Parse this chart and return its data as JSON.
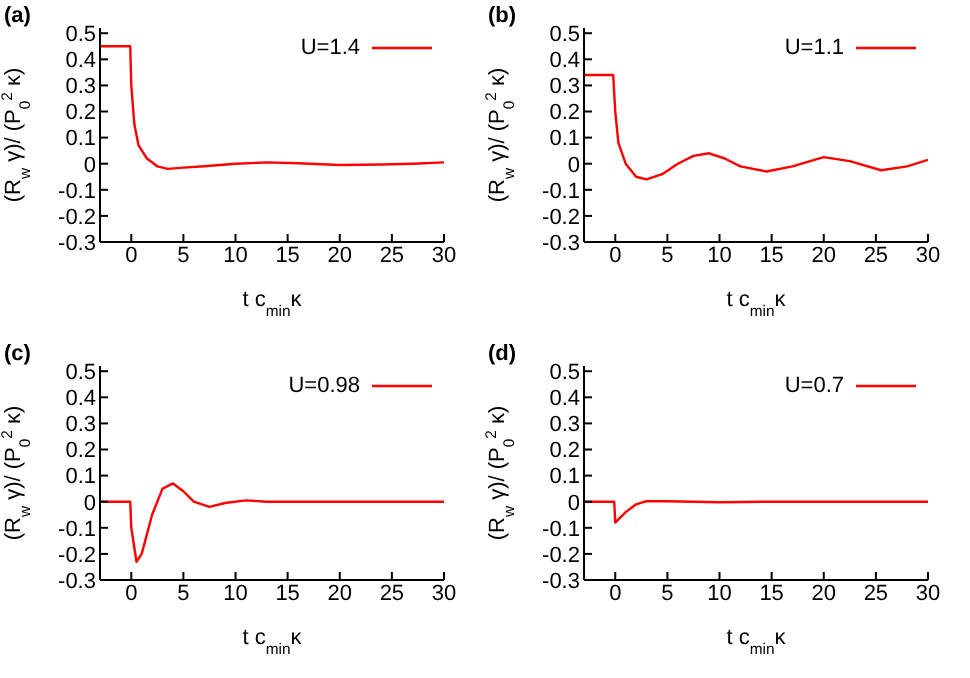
{
  "chart_data": [
    {
      "type": "line",
      "title": "(a)",
      "xlabel": "t c$_{min}$κ",
      "ylabel": "(R$_{w}$ γ)/ (P$_{0}$$^{2}$ κ)",
      "xlim": [
        -3,
        30
      ],
      "xticks": [
        0,
        5,
        10,
        15,
        20,
        25,
        30
      ],
      "ylim": [
        -0.3,
        0.52
      ],
      "yticks": [
        -0.3,
        -0.2,
        -0.1,
        0,
        0.1,
        0.2,
        0.3,
        0.4,
        0.5
      ],
      "legend": "top right",
      "grid": false,
      "marker": "none",
      "series": [
        {
          "name": "U=1.4",
          "color": "#ff0000",
          "x": [
            -3,
            -0.1,
            0,
            0.3,
            0.7,
            1.5,
            2.5,
            3.5,
            5,
            7,
            10,
            13,
            16,
            20,
            24,
            27,
            30
          ],
          "values": [
            0.45,
            0.45,
            0.3,
            0.15,
            0.07,
            0.02,
            -0.01,
            -0.02,
            -0.015,
            -0.01,
            0,
            0.005,
            0.002,
            -0.005,
            -0.003,
            0,
            0.005
          ]
        }
      ]
    },
    {
      "type": "line",
      "title": "(b)",
      "xlabel": "t c$_{min}$κ",
      "ylabel": "(R$_{w}$ γ)/ (P$_{0}$$^{2}$ κ)",
      "xlim": [
        -3,
        30
      ],
      "xticks": [
        0,
        5,
        10,
        15,
        20,
        25,
        30
      ],
      "ylim": [
        -0.3,
        0.52
      ],
      "yticks": [
        -0.3,
        -0.2,
        -0.1,
        0,
        0.1,
        0.2,
        0.3,
        0.4,
        0.5
      ],
      "legend": "top right",
      "grid": false,
      "marker": "none",
      "series": [
        {
          "name": "U=1.1",
          "color": "#ff0000",
          "x": [
            -3,
            -0.2,
            0,
            0.3,
            1,
            2,
            3,
            4.5,
            6,
            7.5,
            9,
            10.5,
            12,
            14.5,
            17,
            20,
            22.5,
            25.5,
            28,
            30
          ],
          "values": [
            0.34,
            0.34,
            0.2,
            0.08,
            0,
            -0.05,
            -0.06,
            -0.04,
            0,
            0.03,
            0.04,
            0.02,
            -0.01,
            -0.03,
            -0.01,
            0.025,
            0.01,
            -0.025,
            -0.01,
            0.015
          ]
        }
      ]
    },
    {
      "type": "line",
      "title": "(c)",
      "xlabel": "t c$_{min}$κ",
      "ylabel": "(R$_{w}$ γ)/ (P$_{0}$$^{2}$ κ)",
      "xlim": [
        -3,
        30
      ],
      "xticks": [
        0,
        5,
        10,
        15,
        20,
        25,
        30
      ],
      "ylim": [
        -0.3,
        0.52
      ],
      "yticks": [
        -0.3,
        -0.2,
        -0.1,
        0,
        0.1,
        0.2,
        0.3,
        0.4,
        0.5
      ],
      "legend": "top right",
      "grid": false,
      "marker": "none",
      "series": [
        {
          "name": "U=0.98",
          "color": "#ff0000",
          "x": [
            -3,
            -0.1,
            0,
            0.5,
            1,
            2,
            3,
            4,
            5,
            6,
            7.5,
            9,
            11,
            13,
            16,
            30
          ],
          "values": [
            0,
            0,
            -0.1,
            -0.23,
            -0.2,
            -0.05,
            0.05,
            0.07,
            0.04,
            0,
            -0.02,
            -0.005,
            0.005,
            0,
            0,
            0
          ]
        }
      ]
    },
    {
      "type": "line",
      "title": "(d)",
      "xlabel": "t c$_{min}$κ",
      "ylabel": "(R$_{w}$ γ)/ (P$_{0}$$^{2}$ κ)",
      "xlim": [
        -3,
        30
      ],
      "xticks": [
        0,
        5,
        10,
        15,
        20,
        25,
        30
      ],
      "ylim": [
        -0.3,
        0.52
      ],
      "yticks": [
        -0.3,
        -0.2,
        -0.1,
        0,
        0.1,
        0.2,
        0.3,
        0.4,
        0.5
      ],
      "legend": "top right",
      "grid": false,
      "marker": "none",
      "series": [
        {
          "name": "U=0.7",
          "color": "#ff0000",
          "x": [
            -3,
            -0.1,
            0,
            0.5,
            1,
            2,
            3,
            5,
            10,
            15,
            30
          ],
          "values": [
            0,
            0,
            -0.08,
            -0.06,
            -0.04,
            -0.01,
            0.002,
            0.002,
            -0.002,
            0,
            0
          ]
        }
      ]
    }
  ]
}
